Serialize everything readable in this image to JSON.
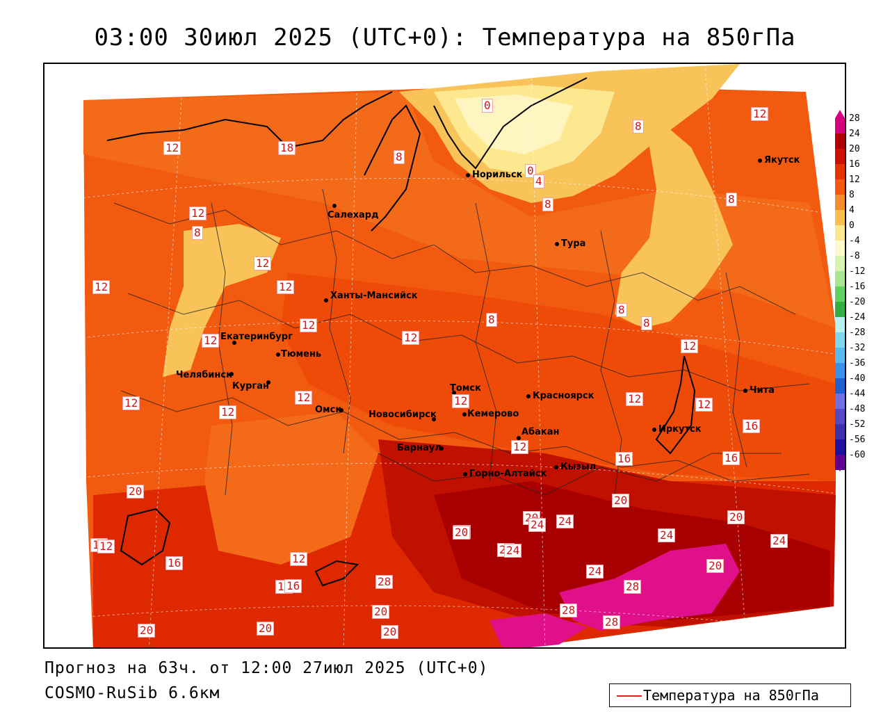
{
  "title": "03:00 30июл 2025 (UTC+0): Температура на 850гПа",
  "caption_forecast": "Прогноз на 63ч. от 12:00 27июл 2025 (UTC+0)",
  "caption_model": "COSMO-RuSib 6.6км",
  "legend_label": "Температура на 850гПа",
  "legend_line_color": "#e02020",
  "colorbar": {
    "labels": [
      "28",
      "24",
      "20",
      "16",
      "12",
      "8",
      "4",
      "0",
      "-4",
      "-8",
      "-12",
      "-16",
      "-20",
      "-24",
      "-28",
      "-32",
      "-36",
      "-40",
      "-44",
      "-48",
      "-52",
      "-56",
      "-60"
    ],
    "colors": [
      "#d4007f",
      "#b00000",
      "#cc1100",
      "#e63300",
      "#f35a10",
      "#f58c30",
      "#f9c050",
      "#fde890",
      "#fff8c8",
      "#d8f4b0",
      "#a8e690",
      "#60d060",
      "#30b040",
      "#b8f0f0",
      "#80d8f0",
      "#58b8f0",
      "#3890e8",
      "#2060d0",
      "#7070e0",
      "#5848c8",
      "#4030b0",
      "#2010a0",
      "#600090"
    ]
  },
  "cities": [
    {
      "name": "Норильск"
    },
    {
      "name": "Якутск"
    },
    {
      "name": "Салехард"
    },
    {
      "name": "Тура"
    },
    {
      "name": "Ханты-Мансийск"
    },
    {
      "name": "Екатеринбург"
    },
    {
      "name": "Тюмень"
    },
    {
      "name": "Челябинск"
    },
    {
      "name": "Курган"
    },
    {
      "name": "Омск"
    },
    {
      "name": "Новосибирск"
    },
    {
      "name": "Томск"
    },
    {
      "name": "Кемерово"
    },
    {
      "name": "Красноярск"
    },
    {
      "name": "Абакан"
    },
    {
      "name": "Барнаул"
    },
    {
      "name": "Горно-Алтайск"
    },
    {
      "name": "Кызыл"
    },
    {
      "name": "Иркутск"
    },
    {
      "name": "Чита"
    }
  ],
  "isolines": [
    "0",
    "0",
    "8",
    "4",
    "8",
    "12",
    "8",
    "12",
    "18",
    "8",
    "12",
    "12",
    "8",
    "12",
    "12",
    "12",
    "8",
    "8",
    "8",
    "12",
    "12",
    "12",
    "12",
    "12",
    "12",
    "12",
    "16",
    "16",
    "12",
    "16",
    "16",
    "12",
    "12",
    "16",
    "20",
    "20",
    "20",
    "24",
    "20",
    "24",
    "24",
    "20",
    "24",
    "20",
    "28",
    "28",
    "28",
    "28",
    "20",
    "20",
    "20",
    "20",
    "20",
    "16",
    "12",
    "16",
    "12",
    "20",
    "24",
    "24"
  ]
}
